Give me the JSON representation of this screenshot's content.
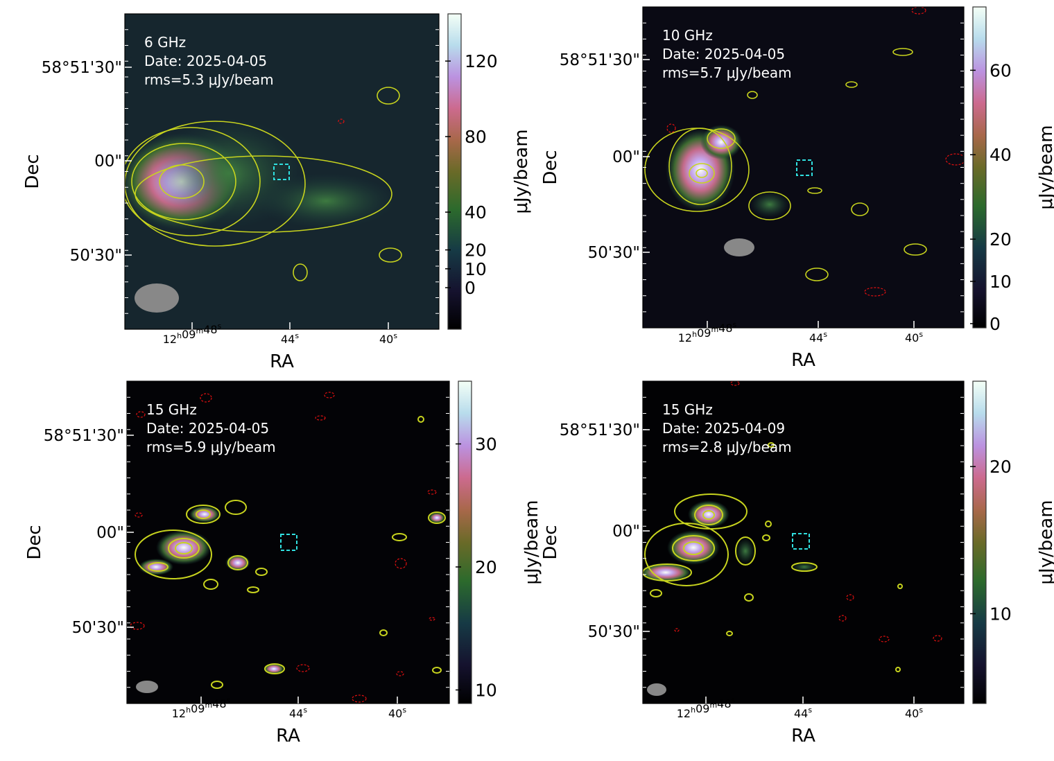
{
  "chart_data": [
    {
      "type": "heatmap",
      "annotations": [
        "6 GHz",
        "Date: 2025-04-05",
        "rms=5.3 μJy/beam"
      ],
      "xlabel": "RA",
      "ylabel": "Dec",
      "xticks": [
        "12h09m48s",
        "44s",
        "40s"
      ],
      "yticks": [
        "58°51'30\"",
        "00\"",
        "50'30\""
      ],
      "colorbar": {
        "label": "μJy/beam",
        "ticks": [
          0,
          10,
          20,
          40,
          80,
          120
        ],
        "range": [
          -22,
          145
        ]
      }
    },
    {
      "type": "heatmap",
      "annotations": [
        "10 GHz",
        "Date: 2025-04-05",
        "rms=5.7 μJy/beam"
      ],
      "xlabel": "RA",
      "ylabel": "Dec",
      "xticks": [
        "12h09m48s",
        "44s",
        "40s"
      ],
      "yticks": [
        "58°51'30\"",
        "00\"",
        "50'30\""
      ],
      "colorbar": {
        "label": "μJy/beam",
        "ticks": [
          0,
          10,
          20,
          40,
          60
        ],
        "range": [
          -1,
          75
        ]
      }
    },
    {
      "type": "heatmap",
      "annotations": [
        "15 GHz",
        "Date: 2025-04-05",
        "rms=5.9 μJy/beam"
      ],
      "xlabel": "RA",
      "ylabel": "Dec",
      "xticks": [
        "12h09m48s",
        "44s",
        "40s"
      ],
      "yticks": [
        "58°51'30\"",
        "00\"",
        "50'30\""
      ],
      "colorbar": {
        "label": "μJy/beam",
        "ticks": [
          10,
          20,
          30
        ],
        "range": [
          8.9,
          35.1
        ]
      }
    },
    {
      "type": "heatmap",
      "annotations": [
        "15 GHz",
        "Date: 2025-04-09",
        "rms=2.8 μJy/beam"
      ],
      "xlabel": "RA",
      "ylabel": "Dec",
      "xticks": [
        "12h09m48s",
        "44s",
        "40s"
      ],
      "yticks": [
        "58°51'30\"",
        "00\"",
        "50'30\""
      ],
      "colorbar": {
        "label": "μJy/beam",
        "ticks": [
          10,
          20
        ],
        "range": [
          3.9,
          25.8
        ]
      }
    }
  ],
  "colors": {
    "contour": "#c8d41e",
    "negative_contour": "#e01010",
    "marker": "#30e0e0",
    "beam": "#888888"
  }
}
